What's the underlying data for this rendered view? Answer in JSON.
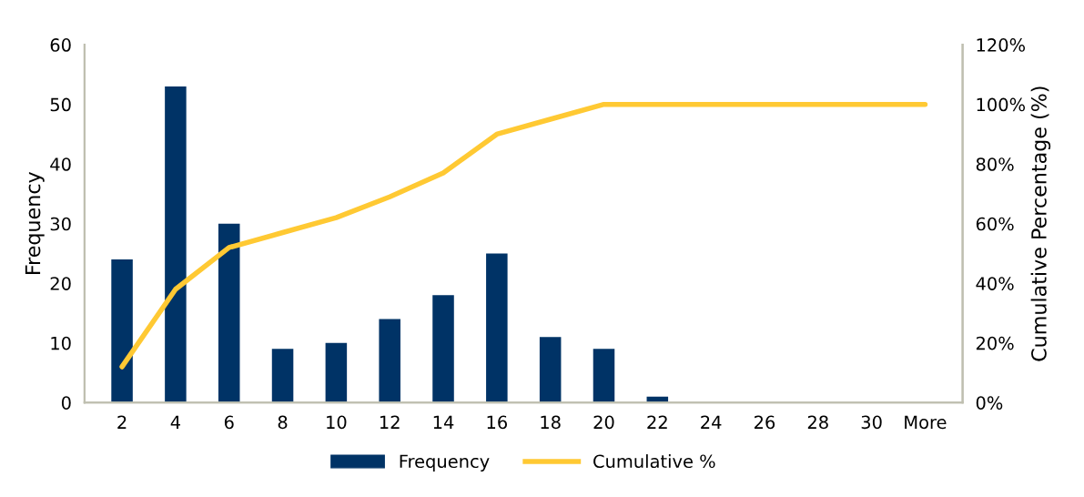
{
  "chart_data": {
    "type": "bar",
    "categories": [
      "2",
      "4",
      "6",
      "8",
      "10",
      "12",
      "14",
      "16",
      "18",
      "20",
      "22",
      "24",
      "26",
      "28",
      "30",
      "More"
    ],
    "series": [
      {
        "name": "Frequency",
        "color": "#003366",
        "values": [
          24,
          53,
          30,
          9,
          10,
          14,
          18,
          25,
          11,
          9,
          1,
          0,
          0,
          0,
          0,
          0
        ]
      },
      {
        "name": "Cumulative %",
        "type": "line",
        "axis": "y2",
        "color": "#ffc933",
        "values": [
          12,
          38,
          52,
          57,
          62,
          69,
          77,
          90,
          95,
          100,
          100,
          100,
          100,
          100,
          100,
          100
        ]
      }
    ],
    "ylabel": "Frequency",
    "y2label": "Cumulative Percentage (%)",
    "ylim": [
      0,
      60
    ],
    "yticks": [
      0,
      10,
      20,
      30,
      40,
      50,
      60
    ],
    "y2lim": [
      0,
      120
    ],
    "y2ticks": [
      {
        "value": 0,
        "label": "0%"
      },
      {
        "value": 20,
        "label": "20%"
      },
      {
        "value": 40,
        "label": "40%"
      },
      {
        "value": 60,
        "label": "60%"
      },
      {
        "value": 80,
        "label": "80%"
      },
      {
        "value": 100,
        "label": "100%"
      },
      {
        "value": 120,
        "label": "120%"
      }
    ],
    "grid": false,
    "legend": "bottom",
    "marker": "none",
    "line_style": "solid"
  }
}
